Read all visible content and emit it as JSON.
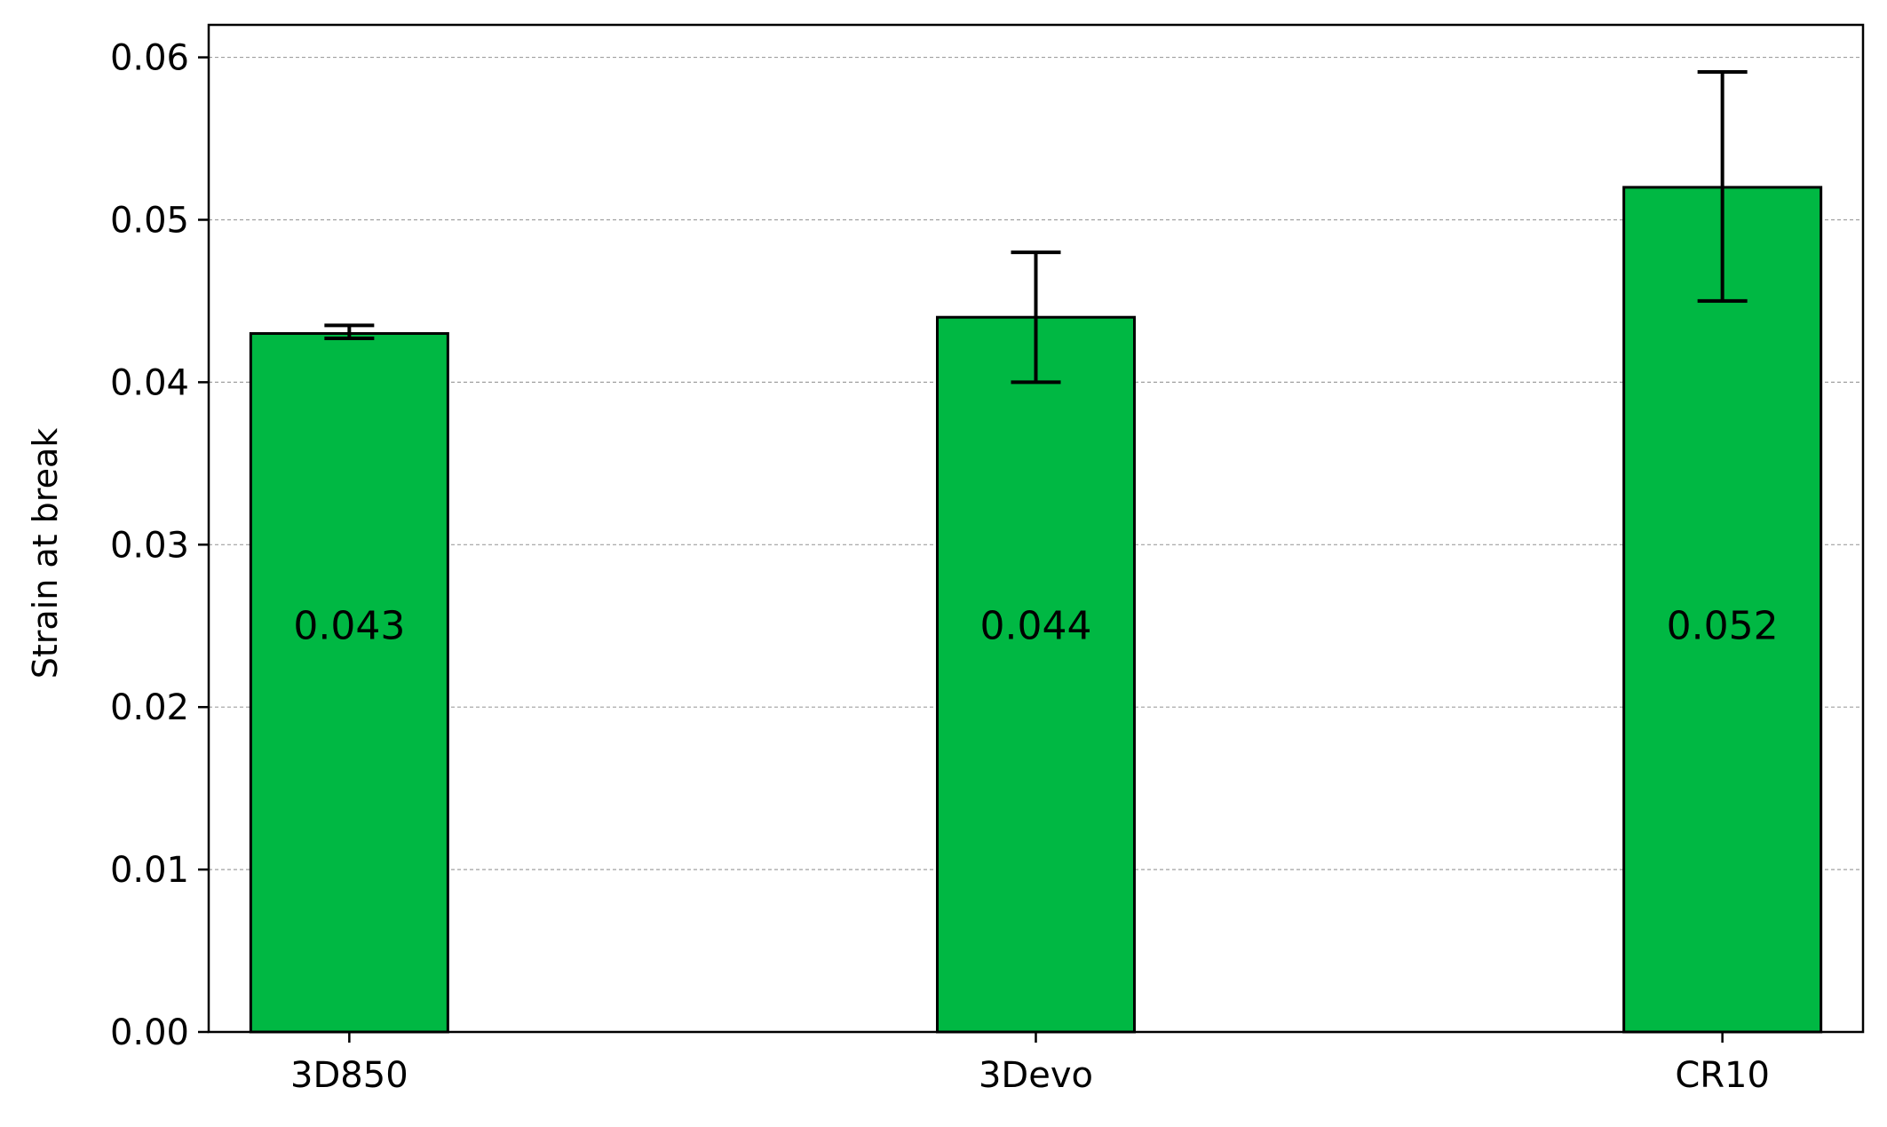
{
  "chart_data": {
    "type": "bar",
    "categories": [
      "3D850",
      "3Devo",
      "CR10"
    ],
    "values": [
      0.043,
      0.044,
      0.052
    ],
    "error_low": [
      0.0427,
      0.04,
      0.045
    ],
    "error_high": [
      0.0435,
      0.048,
      0.0591
    ],
    "data_labels": [
      "0.043",
      "0.044",
      "0.052"
    ],
    "title": "",
    "xlabel": "",
    "ylabel": "Strain at break",
    "ylim": [
      0,
      0.062
    ],
    "yticks": [
      0.0,
      0.01,
      0.02,
      0.03,
      0.04,
      0.05,
      0.06
    ],
    "ytick_labels": [
      "0.00",
      "0.01",
      "0.02",
      "0.03",
      "0.04",
      "0.05",
      "0.06"
    ],
    "grid": "y-dashed",
    "colors": {
      "bar": "#00b843",
      "edge": "#000000",
      "grid": "#a0a0a0"
    }
  }
}
